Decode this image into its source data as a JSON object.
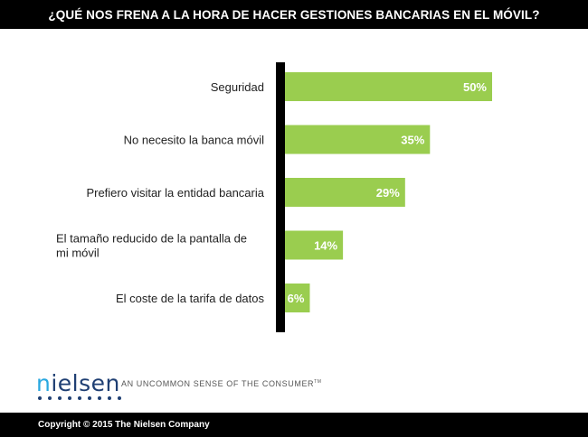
{
  "header": {
    "title": "¿QUÉ NOS FRENA A LA HORA DE HACER GESTIONES BANCARIAS EN EL MÓVIL?"
  },
  "chart_data": {
    "type": "bar",
    "orientation": "horizontal",
    "title": "¿QUÉ NOS FRENA A LA HORA DE HACER GESTIONES BANCARIAS EN EL MÓVIL?",
    "categories": [
      "Seguridad",
      "No necesito la banca móvil",
      "Prefiero visitar la entidad bancaria",
      "El tamaño reducido de la pantalla de mi móvil",
      "El coste de la tarifa de datos"
    ],
    "values": [
      50,
      35,
      29,
      14,
      6
    ],
    "value_labels": [
      "50%",
      "35%",
      "29%",
      "14%",
      "6%"
    ],
    "xlim": [
      0,
      50
    ],
    "grid": false,
    "legend": "none",
    "bar_color": "#9acd4f",
    "axis_color": "#000000"
  },
  "brand": {
    "logo_text": "nielsen",
    "tagline": "AN UNCOMMON SENSE OF THE CONSUMER",
    "tagline_mark": "TM"
  },
  "footer": {
    "copyright": "Copyright © 2015 The Nielsen Company"
  }
}
